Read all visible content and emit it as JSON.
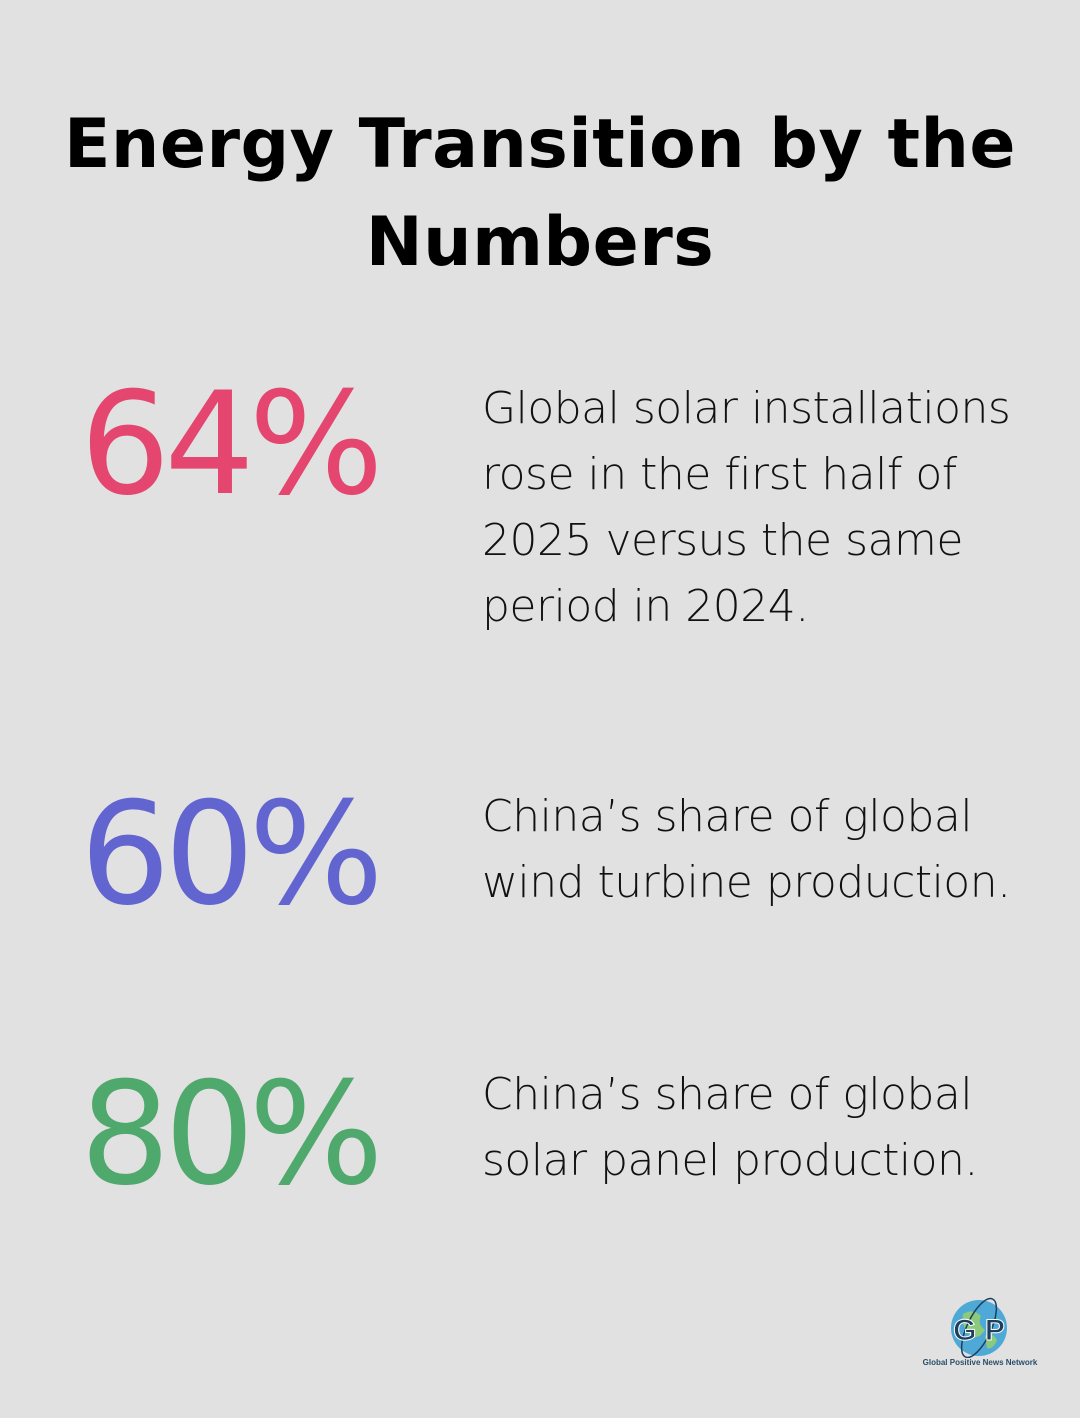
{
  "title": "Energy Transition by the Numbers",
  "stats": [
    {
      "value": "64%",
      "color": "#e4466f",
      "text": "Global solar installations rose in the first half of 2025 versus the same period in 2024."
    },
    {
      "value": "60%",
      "color": "#6264cf",
      "text": "China’s share of global wind turbine production."
    },
    {
      "value": "80%",
      "color": "#4fa86c",
      "text": "China’s share of global solar panel production."
    }
  ],
  "logo": {
    "letters": "G P",
    "name": "Global Positive News Network",
    "icon": "globe-icon"
  }
}
